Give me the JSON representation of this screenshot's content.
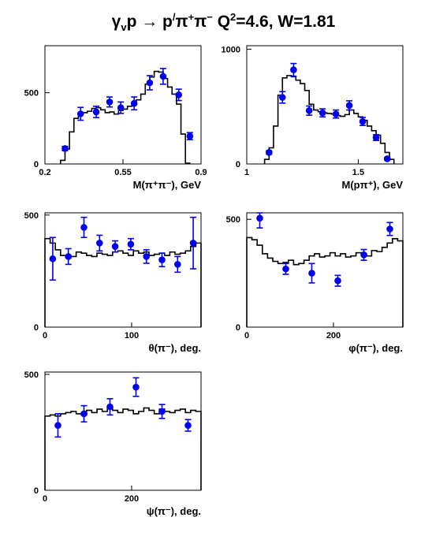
{
  "title": {
    "text": "γ",
    "sub": "v",
    "rest1": "p → p",
    "sup1": "/",
    "rest2": "π",
    "sup2": "+",
    "rest3": "π",
    "sup3": "−",
    "rest4": "  Q",
    "sup4": "2",
    "rest5": "=4.6, W=1.81"
  },
  "colors": {
    "data_points": "#0000ee",
    "histogram": "#000000",
    "frame": "#000000"
  },
  "chart_data": [
    {
      "type": "line",
      "xlabel": "M(π⁺π⁻), GeV",
      "xlim": [
        0.2,
        0.9
      ],
      "ylim": [
        0,
        830
      ],
      "xticks": [
        "0.2",
        "0.55",
        "0.9"
      ],
      "xtick_values": [
        0.2,
        0.55,
        0.9
      ],
      "yticks": [
        "0",
        "500"
      ],
      "ytick_values": [
        0,
        500
      ],
      "series": [
        {
          "kind": "model-histogram",
          "bin_edges": [
            0.27,
            0.29,
            0.31,
            0.33,
            0.35,
            0.37,
            0.39,
            0.41,
            0.43,
            0.45,
            0.47,
            0.49,
            0.51,
            0.53,
            0.55,
            0.57,
            0.59,
            0.61,
            0.63,
            0.65,
            0.67,
            0.69,
            0.71,
            0.73,
            0.75,
            0.77,
            0.79,
            0.81,
            0.83,
            0.85
          ],
          "values": [
            25,
            105,
            225,
            320,
            350,
            360,
            370,
            390,
            395,
            380,
            360,
            365,
            350,
            375,
            385,
            405,
            420,
            450,
            490,
            560,
            610,
            650,
            645,
            600,
            540,
            490,
            420,
            210,
            5
          ]
        },
        {
          "kind": "data",
          "x": [
            0.29,
            0.36,
            0.43,
            0.49,
            0.54,
            0.6,
            0.67,
            0.73,
            0.8,
            0.85
          ],
          "y": [
            108,
            352,
            365,
            435,
            395,
            425,
            570,
            615,
            485,
            195
          ],
          "err": [
            15,
            45,
            40,
            35,
            40,
            45,
            50,
            55,
            40,
            25
          ]
        }
      ]
    },
    {
      "type": "line",
      "xlabel": "M(pπ⁺), GeV",
      "xlim": [
        1.0,
        1.7
      ],
      "ylim": [
        0,
        1030
      ],
      "xticks": [
        "1",
        "1.5"
      ],
      "xtick_values": [
        1.0,
        1.5
      ],
      "yticks": [
        "0",
        "1000"
      ],
      "ytick_values": [
        0,
        1000
      ],
      "series": [
        {
          "kind": "model-histogram",
          "bin_edges": [
            1.08,
            1.1,
            1.12,
            1.14,
            1.16,
            1.18,
            1.2,
            1.22,
            1.24,
            1.26,
            1.28,
            1.3,
            1.32,
            1.34,
            1.36,
            1.38,
            1.4,
            1.42,
            1.44,
            1.46,
            1.48,
            1.5,
            1.52,
            1.54,
            1.56,
            1.58,
            1.6,
            1.62,
            1.64,
            1.66
          ],
          "values": [
            40,
            140,
            330,
            600,
            750,
            770,
            760,
            730,
            700,
            640,
            520,
            470,
            455,
            445,
            440,
            435,
            420,
            415,
            430,
            470,
            440,
            410,
            380,
            330,
            290,
            250,
            180,
            100,
            40
          ]
        },
        {
          "kind": "data",
          "x": [
            1.1,
            1.16,
            1.21,
            1.28,
            1.34,
            1.4,
            1.46,
            1.52,
            1.58,
            1.63
          ],
          "y": [
            100,
            580,
            820,
            465,
            445,
            435,
            510,
            370,
            230,
            45
          ],
          "err": [
            15,
            50,
            55,
            40,
            35,
            35,
            40,
            35,
            25,
            10
          ]
        }
      ]
    },
    {
      "type": "line",
      "xlabel": "θ(π⁻), deg.",
      "xlim": [
        0,
        180
      ],
      "ylim": [
        0,
        510
      ],
      "xticks": [
        "0",
        "100"
      ],
      "xtick_values": [
        0,
        100
      ],
      "yticks": [
        "0",
        "500"
      ],
      "ytick_values": [
        0,
        500
      ],
      "series": [
        {
          "kind": "model-histogram",
          "bin_edges": [
            0,
            6,
            12,
            18,
            24,
            30,
            36,
            42,
            48,
            54,
            60,
            66,
            72,
            78,
            84,
            90,
            96,
            102,
            108,
            114,
            120,
            126,
            132,
            138,
            144,
            150,
            156,
            162,
            168,
            174,
            180
          ],
          "values": [
            395,
            375,
            345,
            320,
            310,
            315,
            335,
            330,
            320,
            315,
            330,
            325,
            320,
            335,
            340,
            330,
            320,
            340,
            330,
            335,
            320,
            325,
            330,
            320,
            335,
            325,
            330,
            340,
            360,
            375
          ]
        },
        {
          "kind": "data",
          "x": [
            9,
            27,
            45,
            63,
            81,
            99,
            117,
            135,
            153,
            171
          ],
          "y": [
            305,
            315,
            445,
            375,
            360,
            370,
            315,
            300,
            280,
            375
          ],
          "err": [
            95,
            35,
            45,
            35,
            25,
            25,
            30,
            30,
            35,
            115
          ]
        }
      ]
    },
    {
      "type": "line",
      "xlabel": "φ(π⁻), deg.",
      "xlim": [
        0,
        360
      ],
      "ylim": [
        0,
        530
      ],
      "xticks": [
        "0",
        "200"
      ],
      "xtick_values": [
        0,
        200
      ],
      "yticks": [
        "0",
        "500"
      ],
      "ytick_values": [
        0,
        500
      ],
      "series": [
        {
          "kind": "model-histogram",
          "bin_edges": [
            0,
            12,
            24,
            36,
            48,
            60,
            72,
            84,
            96,
            108,
            120,
            132,
            144,
            156,
            168,
            180,
            192,
            204,
            216,
            228,
            240,
            252,
            264,
            276,
            288,
            300,
            312,
            324,
            336,
            348,
            360
          ],
          "values": [
            415,
            405,
            380,
            340,
            320,
            305,
            295,
            300,
            310,
            290,
            295,
            310,
            330,
            340,
            325,
            330,
            345,
            330,
            340,
            325,
            330,
            345,
            340,
            330,
            355,
            350,
            370,
            390,
            410,
            400
          ]
        },
        {
          "kind": "data",
          "x": [
            30,
            90,
            150,
            210,
            270,
            330
          ],
          "y": [
            505,
            270,
            250,
            215,
            335,
            455
          ],
          "err": [
            45,
            25,
            45,
            25,
            25,
            30
          ]
        }
      ]
    },
    {
      "type": "line",
      "xlabel": "ψ(π⁻), deg.",
      "xlim": [
        0,
        360
      ],
      "ylim": [
        0,
        510
      ],
      "xticks": [
        "0",
        "200"
      ],
      "xtick_values": [
        0,
        200
      ],
      "yticks": [
        "0",
        "500"
      ],
      "ytick_values": [
        0,
        500
      ],
      "series": [
        {
          "kind": "model-histogram",
          "bin_edges": [
            0,
            12,
            24,
            36,
            48,
            60,
            72,
            84,
            96,
            108,
            120,
            132,
            144,
            156,
            168,
            180,
            192,
            204,
            216,
            228,
            240,
            252,
            264,
            276,
            288,
            300,
            312,
            324,
            336,
            348,
            360
          ],
          "values": [
            320,
            325,
            320,
            330,
            335,
            340,
            330,
            325,
            345,
            335,
            350,
            340,
            355,
            345,
            335,
            350,
            345,
            330,
            340,
            355,
            345,
            330,
            350,
            340,
            335,
            345,
            350,
            335,
            345,
            340
          ]
        },
        {
          "kind": "data",
          "x": [
            30,
            90,
            150,
            210,
            270,
            330
          ],
          "y": [
            280,
            330,
            360,
            445,
            340,
            280
          ],
          "err": [
            50,
            35,
            35,
            40,
            30,
            25
          ]
        }
      ]
    }
  ]
}
